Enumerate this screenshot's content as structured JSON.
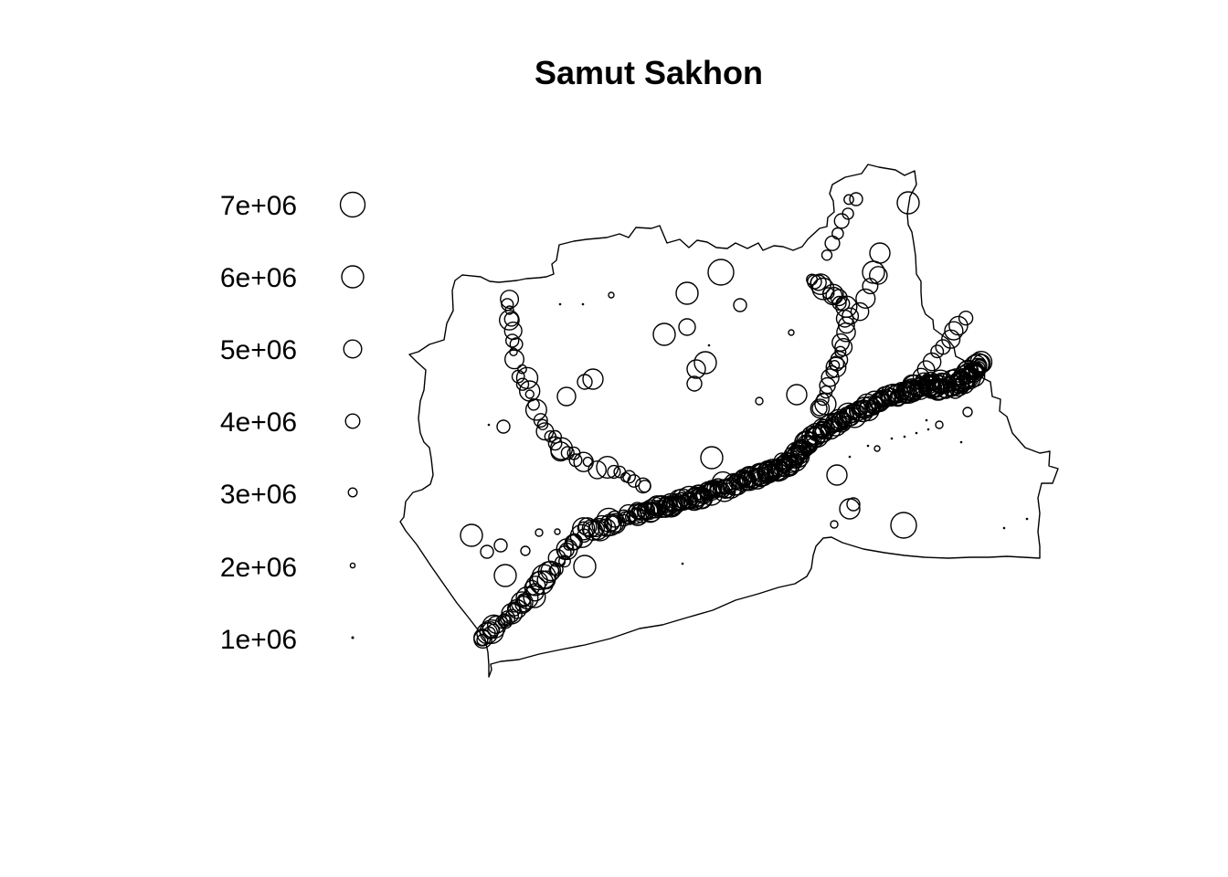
{
  "map": {
    "title": "Samut Sakhon",
    "legend": {
      "entries": [
        {
          "label": "7e+06",
          "value": 7000000
        },
        {
          "label": "6e+06",
          "value": 6000000
        },
        {
          "label": "5e+06",
          "value": 5000000
        },
        {
          "label": "4e+06",
          "value": 4000000
        },
        {
          "label": "3e+06",
          "value": 3000000
        },
        {
          "label": "2e+06",
          "value": 2000000
        },
        {
          "label": "1e+06",
          "value": 1000000
        }
      ]
    },
    "colors": {
      "stroke": "#000000",
      "background": "#ffffff"
    }
  }
}
